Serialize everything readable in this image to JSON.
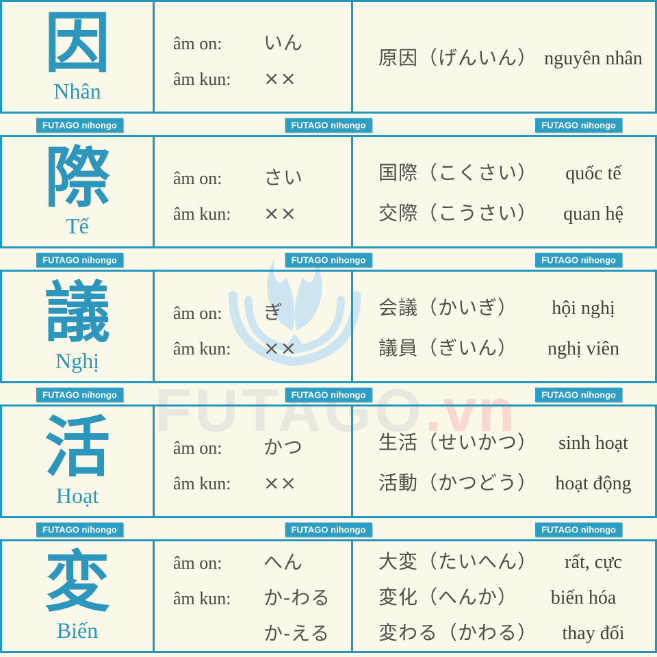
{
  "page": {
    "background": "#FAF8E9",
    "accent_teal": "#2397BE",
    "badge_teal": "#2D9EC3",
    "text_dark": "#4A4843",
    "watermark_gray": "#E9E8DF",
    "watermark_pink": "#F8D8D0",
    "watermark_logo_blue": "#CDE5F0"
  },
  "badge": {
    "label": "FUTAGO nihongo"
  },
  "watermark": {
    "brand": "FUTAGO",
    "domain": ".vn",
    "logo_icon": "open-book-logo"
  },
  "labels": {
    "on": "âm on:",
    "kun": "âm kun:"
  },
  "rows": [
    {
      "kanji": "因",
      "viet_name": "Nhân",
      "on_value": "いん",
      "kun_value": "××",
      "kun_value2": "",
      "examples": [
        {
          "jp": "原因（げんいん）",
          "vi": "nguyên nhân"
        }
      ]
    },
    {
      "kanji": "際",
      "viet_name": "Tế",
      "on_value": "さい",
      "kun_value": "××",
      "kun_value2": "",
      "examples": [
        {
          "jp": "国際（こくさい）",
          "vi": "quốc tế"
        },
        {
          "jp": "交際（こうさい）",
          "vi": "quan hệ"
        }
      ]
    },
    {
      "kanji": "議",
      "viet_name": "Nghị",
      "on_value": "ぎ",
      "kun_value": "××",
      "kun_value2": "",
      "examples": [
        {
          "jp": "会議（かいぎ）",
          "vi": "hội nghị"
        },
        {
          "jp": "議員（ぎいん）",
          "vi": "nghị viên"
        }
      ]
    },
    {
      "kanji": "活",
      "viet_name": "Hoạt",
      "on_value": "かつ",
      "kun_value": "××",
      "kun_value2": "",
      "examples": [
        {
          "jp": "生活（せいかつ）",
          "vi": "sinh hoạt"
        },
        {
          "jp": "活動（かつどう）",
          "vi": "hoạt động"
        }
      ]
    },
    {
      "kanji": "変",
      "viet_name": "Biến",
      "on_value": "へん",
      "kun_value": "か-わる",
      "kun_value2": "か-える",
      "examples": [
        {
          "jp": "大変（たいへん）",
          "vi": "rất, cực"
        },
        {
          "jp": "変化（へんか）",
          "vi": "biến hóa"
        },
        {
          "jp": "変わる（かわる）",
          "vi": "thay đổi"
        }
      ]
    }
  ]
}
